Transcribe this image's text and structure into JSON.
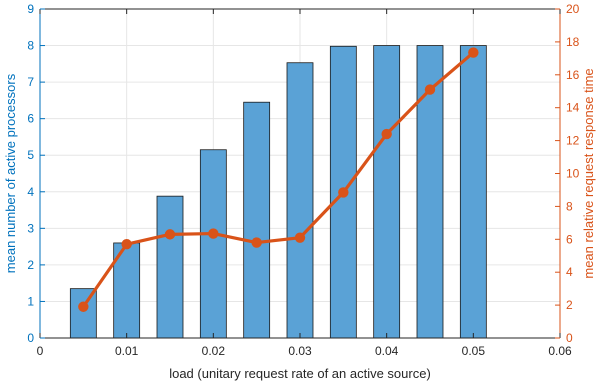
{
  "chart_data": {
    "type": "bar",
    "xlabel": "load (unitary request rate of an active source)",
    "ylabel_left": "mean number of active processors",
    "ylabel_right": "mean relative request response time",
    "xlim": [
      0,
      0.06
    ],
    "ylim_left": [
      0,
      9
    ],
    "ylim_right": [
      0,
      20
    ],
    "x_ticks": [
      "0",
      "0.01",
      "0.02",
      "0.03",
      "0.04",
      "0.05",
      "0.06"
    ],
    "y_left_ticks": [
      "0",
      "1",
      "2",
      "3",
      "4",
      "5",
      "6",
      "7",
      "8",
      "9"
    ],
    "y_right_ticks": [
      "0",
      "2",
      "4",
      "6",
      "8",
      "10",
      "12",
      "14",
      "16",
      "18",
      "20"
    ],
    "grid": true,
    "x": [
      0.005,
      0.01,
      0.015,
      0.02,
      0.025,
      0.03,
      0.035,
      0.04,
      0.045,
      0.05
    ],
    "series": [
      {
        "type": "bar",
        "axis": "left",
        "values": [
          1.35,
          2.6,
          3.88,
          5.15,
          6.45,
          7.53,
          7.98,
          8.0,
          8.0,
          8.0
        ]
      },
      {
        "type": "line",
        "axis": "right",
        "values": [
          1.9,
          5.7,
          6.3,
          6.35,
          5.8,
          6.1,
          8.85,
          12.4,
          15.1,
          17.35
        ]
      }
    ],
    "colors": {
      "bar_fill": "#5aa2d6",
      "bar_stroke": "#1a1a1a",
      "line": "#d95319",
      "left_axis": "#0072bd",
      "right_axis": "#d95319",
      "x_axis": "#262626",
      "grid": "#e6e6e6"
    }
  }
}
